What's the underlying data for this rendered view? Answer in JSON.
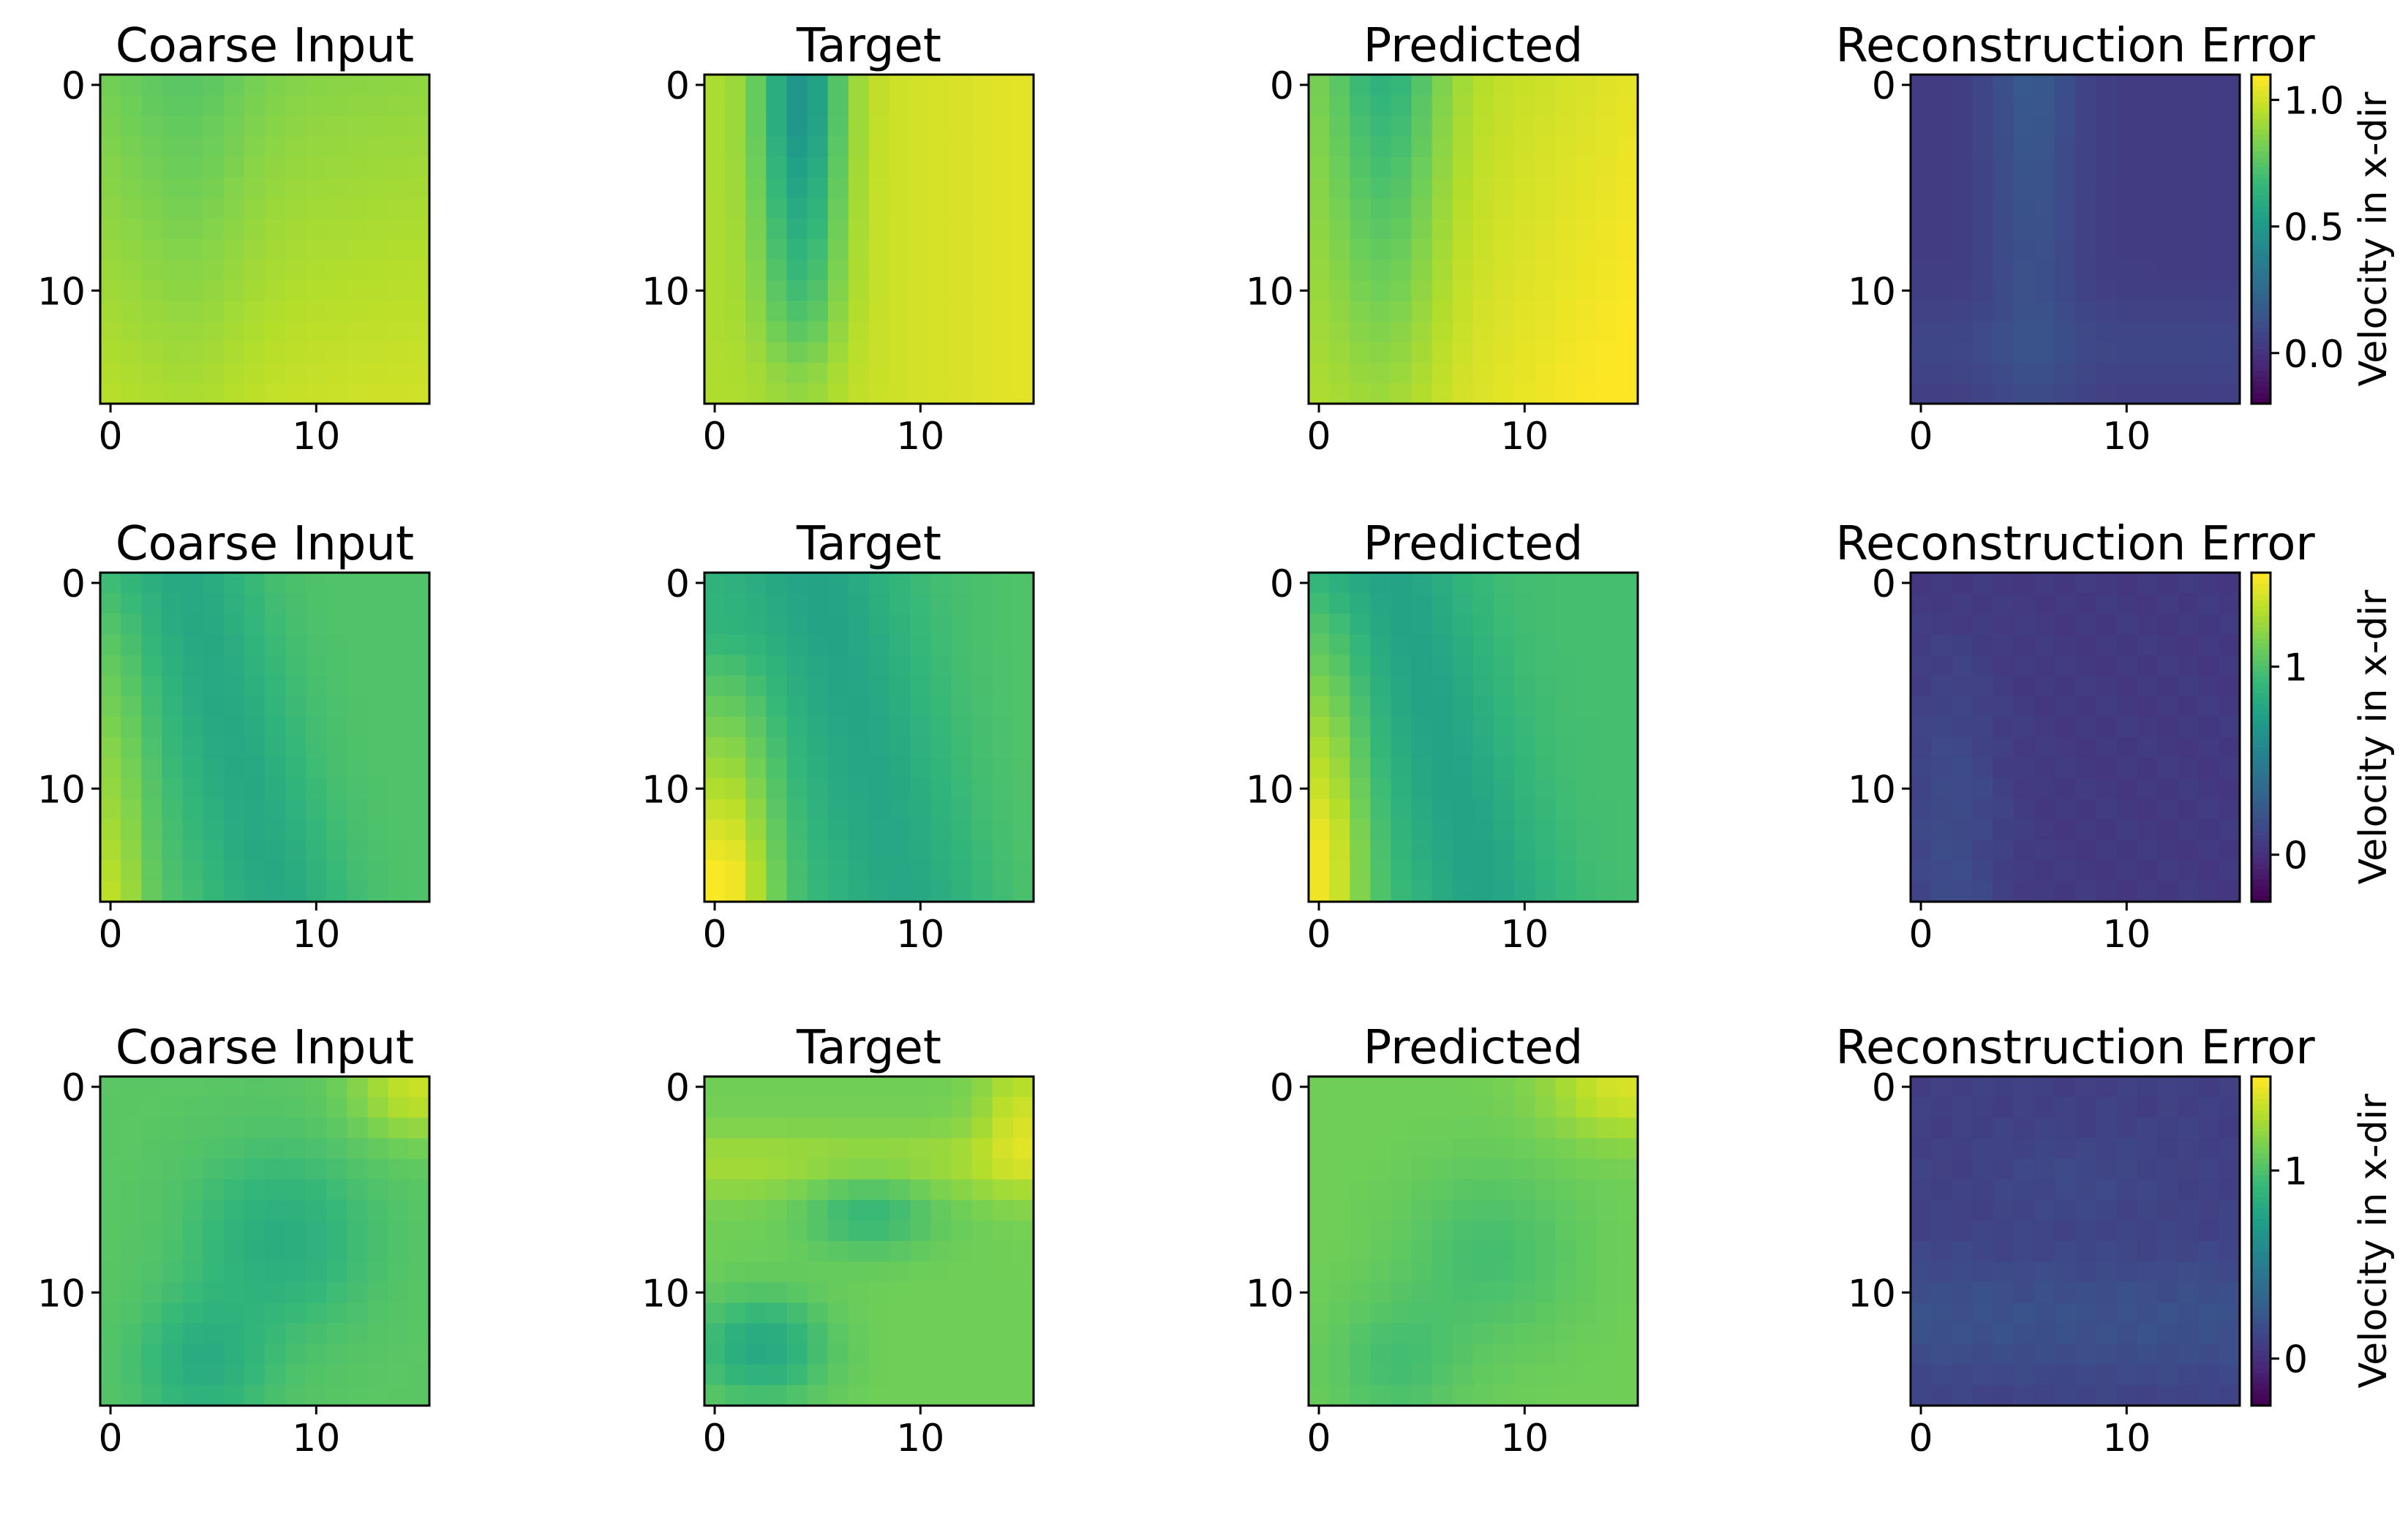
{
  "colormap": "viridis",
  "chart_data": [
    {
      "type": "heatmap",
      "row": 0,
      "col": 0,
      "title": "Coarse Input",
      "grid": [
        16,
        16
      ],
      "xticks": [
        0,
        10
      ],
      "yticks": [
        0,
        10
      ],
      "pattern": "coarse",
      "variant": 0
    },
    {
      "type": "heatmap",
      "row": 0,
      "col": 1,
      "title": "Target",
      "grid": [
        16,
        16
      ],
      "xticks": [
        0,
        10
      ],
      "yticks": [
        0,
        10
      ],
      "pattern": "target",
      "variant": 0
    },
    {
      "type": "heatmap",
      "row": 0,
      "col": 2,
      "title": "Predicted",
      "grid": [
        16,
        16
      ],
      "xticks": [
        0,
        10
      ],
      "yticks": [
        0,
        10
      ],
      "pattern": "predicted",
      "variant": 0
    },
    {
      "type": "heatmap",
      "row": 0,
      "col": 3,
      "title": "Reconstruction Error",
      "grid": [
        16,
        16
      ],
      "xticks": [
        0,
        10
      ],
      "yticks": [
        0,
        10
      ],
      "pattern": "error",
      "variant": 0,
      "colorbar": {
        "label": "Velocity in x-dir",
        "range": [
          -0.2,
          1.1
        ],
        "ticks": [
          {
            "value": 1.0,
            "label": "1.0"
          },
          {
            "value": 0.5,
            "label": "0.5"
          },
          {
            "value": 0.0,
            "label": "0.0"
          }
        ]
      }
    },
    {
      "type": "heatmap",
      "row": 1,
      "col": 0,
      "title": "Coarse Input",
      "grid": [
        16,
        16
      ],
      "xticks": [
        0,
        10
      ],
      "yticks": [
        0,
        10
      ],
      "pattern": "coarse",
      "variant": 1
    },
    {
      "type": "heatmap",
      "row": 1,
      "col": 1,
      "title": "Target",
      "grid": [
        16,
        16
      ],
      "xticks": [
        0,
        10
      ],
      "yticks": [
        0,
        10
      ],
      "pattern": "target",
      "variant": 1
    },
    {
      "type": "heatmap",
      "row": 1,
      "col": 2,
      "title": "Predicted",
      "grid": [
        16,
        16
      ],
      "xticks": [
        0,
        10
      ],
      "yticks": [
        0,
        10
      ],
      "pattern": "predicted",
      "variant": 1
    },
    {
      "type": "heatmap",
      "row": 1,
      "col": 3,
      "title": "Reconstruction Error",
      "grid": [
        16,
        16
      ],
      "xticks": [
        0,
        10
      ],
      "yticks": [
        0,
        10
      ],
      "pattern": "error",
      "variant": 1,
      "colorbar": {
        "label": "Velocity in x-dir",
        "range": [
          -0.25,
          1.5
        ],
        "ticks": [
          {
            "value": 1,
            "label": "1"
          },
          {
            "value": 0,
            "label": "0"
          }
        ]
      }
    },
    {
      "type": "heatmap",
      "row": 2,
      "col": 0,
      "title": "Coarse Input",
      "grid": [
        16,
        16
      ],
      "xticks": [
        0,
        10
      ],
      "yticks": [
        0,
        10
      ],
      "pattern": "coarse",
      "variant": 2
    },
    {
      "type": "heatmap",
      "row": 2,
      "col": 1,
      "title": "Target",
      "grid": [
        16,
        16
      ],
      "xticks": [
        0,
        10
      ],
      "yticks": [
        0,
        10
      ],
      "pattern": "target",
      "variant": 2
    },
    {
      "type": "heatmap",
      "row": 2,
      "col": 2,
      "title": "Predicted",
      "grid": [
        16,
        16
      ],
      "xticks": [
        0,
        10
      ],
      "yticks": [
        0,
        10
      ],
      "pattern": "predicted",
      "variant": 2
    },
    {
      "type": "heatmap",
      "row": 2,
      "col": 3,
      "title": "Reconstruction Error",
      "grid": [
        16,
        16
      ],
      "xticks": [
        0,
        10
      ],
      "yticks": [
        0,
        10
      ],
      "pattern": "error",
      "variant": 2,
      "colorbar": {
        "label": "Velocity in x-dir",
        "range": [
          -0.25,
          1.5
        ],
        "ticks": [
          {
            "value": 1,
            "label": "1"
          },
          {
            "value": 0,
            "label": "0"
          }
        ]
      }
    }
  ]
}
